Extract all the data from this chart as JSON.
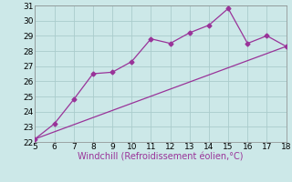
{
  "line1_x": [
    5,
    6,
    7,
    8,
    9,
    10,
    11,
    12,
    13,
    14,
    15,
    16,
    17,
    18
  ],
  "line1_y": [
    22.2,
    23.2,
    24.8,
    26.5,
    26.6,
    27.3,
    28.8,
    28.5,
    29.2,
    29.7,
    30.8,
    28.5,
    29.0,
    28.3
  ],
  "line2_x": [
    5,
    18
  ],
  "line2_y": [
    22.2,
    28.3
  ],
  "line_color": "#993399",
  "bg_color": "#cce8e8",
  "grid_color": "#aacccc",
  "xlabel": "Windchill (Refroidissement éolien,°C)",
  "xlim": [
    5,
    18
  ],
  "ylim": [
    22,
    31
  ],
  "xticks": [
    5,
    6,
    7,
    8,
    9,
    10,
    11,
    12,
    13,
    14,
    15,
    16,
    17,
    18
  ],
  "yticks": [
    22,
    23,
    24,
    25,
    26,
    27,
    28,
    29,
    30,
    31
  ],
  "xlabel_color": "#993399",
  "xlabel_fontsize": 7,
  "tick_fontsize": 6.5,
  "marker": "D",
  "marker_size": 2.5
}
